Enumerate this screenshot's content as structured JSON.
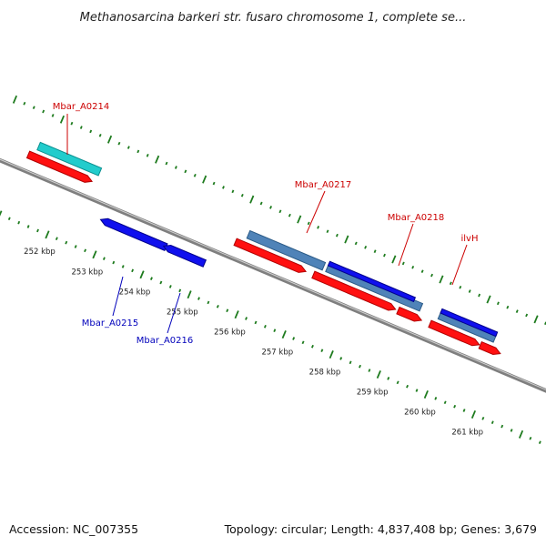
{
  "title": "Methanosarcina barkeri str. fusaro chromosome 1, complete se...",
  "footer": {
    "accession": "Accession: NC_007355",
    "summary": "Topology: circular; Length: 4,837,408 bp; Genes: 3,679"
  },
  "colors": {
    "backbone": "#7f7f7f",
    "backbone_highlight": "#d0d0d0",
    "tick": "#1e7b1e",
    "gene_forward_label": "#cc0000",
    "gene_reverse_label": "#0000bb",
    "cds_red": "#ff1010",
    "cds_dark_red": "#b00000",
    "blue_gene": "#1010ee",
    "dark_blue": "#00008a",
    "steel_blue": "#4f83b8",
    "dark_steel": "#2a5a86",
    "cyan": "#22cccc",
    "dark_cyan": "#0a8f8f"
  },
  "ticks": {
    "labels": [
      "252 kbp",
      "253 kbp",
      "254 kbp",
      "255 kbp",
      "256 kbp",
      "257 kbp",
      "258 kbp",
      "259 kbp",
      "260 kbp",
      "261 kbp"
    ]
  },
  "genes": {
    "labels": [
      {
        "name": "Mbar_A0214",
        "strand": "forward"
      },
      {
        "name": "Mbar_A0217",
        "strand": "forward"
      },
      {
        "name": "Mbar_A0218",
        "strand": "forward"
      },
      {
        "name": "ilvH",
        "strand": "forward"
      },
      {
        "name": "Mbar_A0215",
        "strand": "reverse"
      },
      {
        "name": "Mbar_A0216",
        "strand": "reverse"
      }
    ]
  }
}
